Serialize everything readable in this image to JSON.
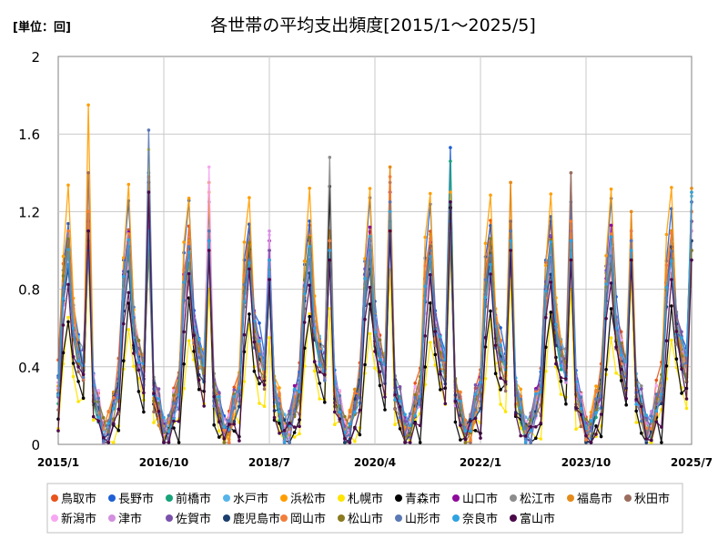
{
  "chart_data": {
    "type": "line",
    "title": "各世帯の平均支出頻度[2015/1～2025/5]",
    "unit_label": "[単位：回]",
    "xlabel": "",
    "ylabel": "",
    "ylim": [
      0,
      2
    ],
    "yticks": [
      "0",
      "0.4",
      "0.8",
      "1.2",
      "1.6",
      "2"
    ],
    "xticks": [
      "2015/1",
      "2016/10",
      "2018/7",
      "2020/4",
      "2022/1",
      "2023/10",
      "2025/7"
    ],
    "grid": true,
    "legend_position": "bottom",
    "x_start": "2015/1",
    "x_end": "2025/7",
    "series": [
      {
        "name": "鳥取市",
        "color": "#e8541c",
        "base": [
          0.4,
          0.86,
          1.12,
          0.62,
          0.5,
          0.4,
          0.35,
          0.3,
          0.2,
          0.08,
          0.1,
          0.25
        ],
        "peaks": [
          1.2,
          1.05,
          1.0,
          0.9,
          1.05,
          1.25,
          1.15,
          0.95,
          1.0,
          0.95,
          1.05
        ]
      },
      {
        "name": "長野市",
        "color": "#1f5fd6",
        "base": [
          0.3,
          0.95,
          1.2,
          0.7,
          0.55,
          0.42,
          0.38,
          0.3,
          0.22,
          0.07,
          0.09,
          0.22
        ],
        "peaks": [
          1.15,
          1.4,
          1.25,
          1.0,
          1.1,
          1.3,
          1.53,
          1.15,
          1.25,
          1.1,
          1.2
        ]
      },
      {
        "name": "前橋市",
        "color": "#18a37a",
        "base": [
          0.28,
          0.8,
          1.0,
          0.58,
          0.45,
          0.38,
          0.32,
          0.26,
          0.18,
          0.06,
          0.08,
          0.2
        ],
        "peaks": [
          1.0,
          1.3,
          1.0,
          0.8,
          1.05,
          1.2,
          1.46,
          1.1,
          1.0,
          1.0,
          1.15
        ]
      },
      {
        "name": "水戸市",
        "color": "#56b4e9",
        "base": [
          0.25,
          0.78,
          0.98,
          0.62,
          0.48,
          0.4,
          0.35,
          0.28,
          0.2,
          0.07,
          0.09,
          0.2
        ],
        "peaks": [
          1.05,
          1.1,
          1.05,
          0.9,
          1.0,
          1.2,
          1.25,
          1.1,
          1.05,
          1.0,
          1.28
        ]
      },
      {
        "name": "浜松市",
        "color": "#ff9d00",
        "base": [
          0.3,
          1.0,
          1.3,
          0.68,
          0.5,
          0.42,
          0.36,
          0.3,
          0.22,
          0.08,
          0.1,
          0.24
        ],
        "peaks": [
          1.75,
          1.35,
          1.3,
          0.95,
          1.1,
          1.43,
          1.3,
          1.35,
          1.15,
          1.2,
          1.3
        ]
      },
      {
        "name": "札幌市",
        "color": "#ffe400",
        "base": [
          0.1,
          0.35,
          0.6,
          0.4,
          0.28,
          0.22,
          0.18,
          0.15,
          0.1,
          0.03,
          0.04,
          0.08
        ],
        "peaks": [
          0.95,
          1.52,
          0.8,
          0.55,
          0.7,
          0.9,
          1.0,
          0.85,
          0.8,
          0.85,
          1.1
        ]
      },
      {
        "name": "青森市",
        "color": "#000000",
        "base": [
          0.05,
          0.45,
          0.7,
          0.45,
          0.3,
          0.25,
          0.2,
          0.16,
          0.1,
          0.02,
          0.03,
          0.08
        ],
        "peaks": [
          1.1,
          1.35,
          1.0,
          0.85,
          1.33,
          1.15,
          1.22,
          1.1,
          1.0,
          1.05,
          1.0
        ]
      },
      {
        "name": "山口市",
        "color": "#8e0b9c",
        "base": [
          0.3,
          0.82,
          1.05,
          0.6,
          0.48,
          0.4,
          0.34,
          0.28,
          0.2,
          0.06,
          0.09,
          0.22
        ],
        "peaks": [
          1.15,
          1.1,
          1.0,
          1.05,
          1.0,
          1.3,
          1.1,
          1.0,
          1.05,
          1.0,
          1.25
        ]
      },
      {
        "name": "松江市",
        "color": "#8c8c8c",
        "base": [
          0.3,
          0.78,
          1.0,
          0.6,
          0.5,
          0.42,
          0.36,
          0.3,
          0.22,
          0.08,
          0.1,
          0.24
        ],
        "peaks": [
          1.0,
          1.1,
          1.05,
          0.9,
          1.48,
          1.15,
          1.1,
          1.05,
          1.4,
          1.0,
          1.15
        ]
      },
      {
        "name": "福島市",
        "color": "#e58a1a",
        "base": [
          0.28,
          0.8,
          1.02,
          0.58,
          0.46,
          0.38,
          0.32,
          0.26,
          0.18,
          0.06,
          0.08,
          0.2
        ],
        "peaks": [
          1.05,
          1.38,
          1.35,
          1.0,
          1.0,
          1.43,
          1.2,
          1.35,
          1.05,
          1.2,
          1.32
        ]
      },
      {
        "name": "秋田市",
        "color": "#9b6d5e",
        "base": [
          0.22,
          0.72,
          0.92,
          0.56,
          0.44,
          0.36,
          0.3,
          0.25,
          0.16,
          0.05,
          0.07,
          0.18
        ],
        "peaks": [
          1.4,
          1.2,
          1.0,
          0.95,
          1.0,
          1.35,
          1.25,
          1.15,
          1.4,
          1.05,
          1.25
        ]
      },
      {
        "name": "新潟市",
        "color": "#f7a6f2",
        "base": [
          0.25,
          0.75,
          0.95,
          0.6,
          0.46,
          0.4,
          0.34,
          0.28,
          0.2,
          0.07,
          0.09,
          0.22
        ],
        "peaks": [
          1.05,
          1.15,
          1.43,
          1.08,
          0.95,
          1.1,
          1.05,
          1.0,
          1.0,
          0.95,
          1.05
        ]
      },
      {
        "name": "津市",
        "color": "#d48fe0",
        "base": [
          0.26,
          0.76,
          0.96,
          0.6,
          0.47,
          0.4,
          0.34,
          0.28,
          0.2,
          0.07,
          0.09,
          0.21
        ],
        "peaks": [
          1.0,
          1.1,
          1.05,
          1.1,
          1.0,
          1.25,
          1.1,
          1.0,
          1.0,
          1.0,
          1.1
        ]
      },
      {
        "name": "佐賀市",
        "color": "#7b52ab",
        "base": [
          0.3,
          0.82,
          1.04,
          0.62,
          0.5,
          0.42,
          0.36,
          0.3,
          0.22,
          0.08,
          0.1,
          0.24
        ],
        "peaks": [
          1.05,
          1.15,
          1.1,
          1.0,
          1.0,
          1.2,
          1.15,
          1.05,
          1.1,
          1.05,
          1.15
        ]
      },
      {
        "name": "鹿児島市",
        "color": "#1b3f6e",
        "base": [
          0.26,
          0.74,
          0.95,
          0.56,
          0.44,
          0.36,
          0.3,
          0.25,
          0.17,
          0.05,
          0.07,
          0.18
        ],
        "peaks": [
          1.1,
          1.0,
          1.05,
          0.85,
          0.95,
          1.1,
          1.05,
          1.0,
          0.95,
          0.95,
          1.05
        ]
      },
      {
        "name": "岡山市",
        "color": "#f07f3c",
        "base": [
          0.3,
          0.84,
          1.06,
          0.62,
          0.48,
          0.4,
          0.34,
          0.28,
          0.2,
          0.07,
          0.09,
          0.22
        ],
        "peaks": [
          1.2,
          1.1,
          1.1,
          0.95,
          1.05,
          1.38,
          1.15,
          1.05,
          1.15,
          1.1,
          1.2
        ]
      },
      {
        "name": "松山市",
        "color": "#8a7a20",
        "base": [
          0.28,
          0.8,
          1.0,
          0.58,
          0.46,
          0.38,
          0.32,
          0.26,
          0.18,
          0.06,
          0.08,
          0.2
        ],
        "peaks": [
          1.05,
          1.0,
          1.0,
          0.9,
          0.95,
          1.15,
          1.05,
          1.0,
          1.0,
          0.95,
          1.0
        ]
      },
      {
        "name": "山形市",
        "color": "#5a79b5",
        "base": [
          0.26,
          0.78,
          0.98,
          0.58,
          0.46,
          0.38,
          0.32,
          0.26,
          0.18,
          0.06,
          0.08,
          0.2
        ],
        "peaks": [
          1.1,
          1.62,
          1.1,
          0.95,
          1.0,
          1.25,
          1.2,
          1.1,
          1.05,
          1.05,
          1.25
        ]
      },
      {
        "name": "奈良市",
        "color": "#2fa3e0",
        "base": [
          0.26,
          0.8,
          1.0,
          0.6,
          0.48,
          0.4,
          0.34,
          0.28,
          0.2,
          0.07,
          0.09,
          0.21
        ],
        "peaks": [
          1.0,
          1.1,
          1.05,
          0.95,
          1.0,
          1.2,
          1.15,
          1.05,
          1.05,
          1.0,
          1.3
        ]
      },
      {
        "name": "富山市",
        "color": "#4a0a4a",
        "base": [
          0.1,
          0.6,
          0.85,
          0.5,
          0.36,
          0.28,
          0.24,
          0.2,
          0.12,
          0.03,
          0.05,
          0.1
        ],
        "peaks": [
          1.1,
          1.3,
          1.0,
          0.85,
          0.95,
          1.1,
          1.25,
          1.0,
          0.95,
          0.95,
          0.95
        ]
      }
    ]
  }
}
